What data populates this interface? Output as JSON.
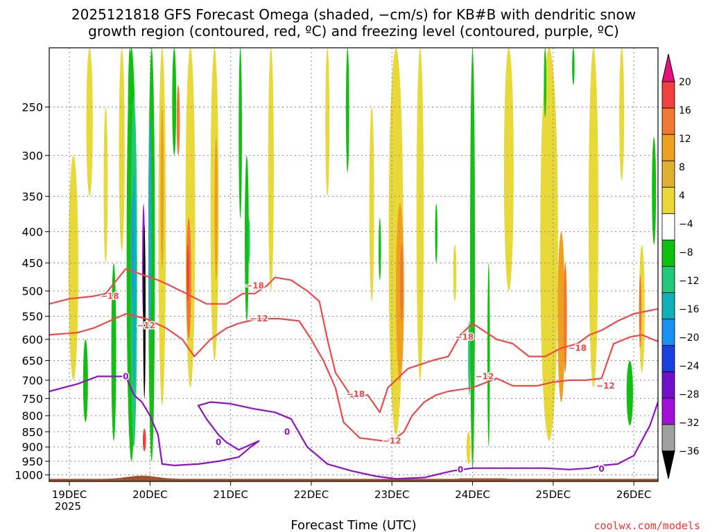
{
  "chart_data": {
    "type": "heatmap",
    "title_line1": "2025121818 GFS Forecast Omega (shaded, −cm/s) for KB#B with dendritic snow",
    "title_line2": "growth region (contoured, red, ºC) and freezing level (contoured, purple, ºC)",
    "xlabel": "Forecast Time (UTC)",
    "x_ticks": [
      "19DEC",
      "20DEC",
      "21DEC",
      "22DEC",
      "23DEC",
      "24DEC",
      "25DEC",
      "26DEC"
    ],
    "x_ticks_sub": "2025",
    "y_ticks": [
      250,
      300,
      350,
      400,
      450,
      500,
      550,
      600,
      650,
      700,
      750,
      800,
      850,
      900,
      950,
      1000
    ],
    "ylim": [
      1025,
      200
    ],
    "xlim_days": [
      -0.25,
      7.3
    ],
    "colorbar": {
      "labels": [
        "20",
        "16",
        "12",
        "8",
        "4",
        "−4",
        "−8",
        "−12",
        "−16",
        "−20",
        "−24",
        "−28",
        "−32",
        "−36"
      ],
      "colors": [
        "#e8107a",
        "#f04040",
        "#f07830",
        "#f0a020",
        "#e0b030",
        "#e8d838",
        "#ffffff",
        "#10c010",
        "#20c878",
        "#10b0b8",
        "#1a90f0",
        "#1a40e0",
        "#7010c8",
        "#a010d8",
        "#a0a0a0",
        "#000000"
      ]
    },
    "shading_regions": [
      {
        "name": "cell-19a",
        "value": 6,
        "t": 0.05,
        "p0": 300,
        "p1": 700,
        "w": 0.12
      },
      {
        "name": "cell-19b",
        "value": 5,
        "t": 0.25,
        "p0": 200,
        "p1": 350,
        "w": 0.08
      },
      {
        "name": "cell-19c",
        "value": -6,
        "t": 0.2,
        "p0": 600,
        "p1": 820,
        "w": 0.06
      },
      {
        "name": "cell-19d",
        "value": -6,
        "t": 0.55,
        "p0": 450,
        "p1": 880,
        "w": 0.06
      },
      {
        "name": "cell-19e",
        "value": 5,
        "t": 0.65,
        "p0": 200,
        "p1": 430,
        "w": 0.07
      },
      {
        "name": "cell-19f",
        "value": -6,
        "t": 0.75,
        "p0": 200,
        "p1": 380,
        "w": 0.05
      },
      {
        "name": "cell-19g",
        "value": 5,
        "t": 0.45,
        "p0": 250,
        "p1": 450,
        "w": 0.05
      },
      {
        "name": "cell-20a",
        "value": -6,
        "t": 0.77,
        "p0": 200,
        "p1": 950,
        "w": 0.12
      },
      {
        "name": "cell-20b",
        "value": -10,
        "t": 0.8,
        "p0": 240,
        "p1": 900,
        "w": 0.08
      },
      {
        "name": "cell-20c",
        "value": -14,
        "t": 0.8,
        "p0": 320,
        "p1": 720,
        "w": 0.05
      },
      {
        "name": "cell-20d",
        "value": -18,
        "t": 0.78,
        "p0": 350,
        "p1": 520,
        "w": 0.02
      },
      {
        "name": "cell-20e",
        "value": -30,
        "t": 0.92,
        "p0": 360,
        "p1": 560,
        "w": 0.035
      },
      {
        "name": "cell-20f",
        "value": -6,
        "t": 1.02,
        "p0": 200,
        "p1": 950,
        "w": 0.08
      },
      {
        "name": "cell-20g",
        "value": -14,
        "t": 1.0,
        "p0": 260,
        "p1": 600,
        "w": 0.04
      },
      {
        "name": "cell-20h",
        "value": -36,
        "t": 0.93,
        "p0": 390,
        "p1": 750,
        "w": 0.03
      },
      {
        "name": "cell-20i",
        "value": 18,
        "t": 0.93,
        "p0": 840,
        "p1": 915,
        "w": 0.04
      },
      {
        "name": "cell-20j",
        "value": 5,
        "t": 1.15,
        "p0": 200,
        "p1": 770,
        "w": 0.09
      },
      {
        "name": "cell-20k",
        "value": 10,
        "t": 1.15,
        "p0": 250,
        "p1": 460,
        "w": 0.04
      },
      {
        "name": "cell-20l",
        "value": -6,
        "t": 1.3,
        "p0": 200,
        "p1": 300,
        "w": 0.05
      },
      {
        "name": "cell-20m",
        "value": 6,
        "t": 1.5,
        "p0": 200,
        "p1": 720,
        "w": 0.12
      },
      {
        "name": "cell-20n",
        "value": 12,
        "t": 1.48,
        "p0": 380,
        "p1": 600,
        "w": 0.06
      },
      {
        "name": "cell-20o",
        "value": 16,
        "t": 1.47,
        "p0": 420,
        "p1": 520,
        "w": 0.03
      },
      {
        "name": "cell-20p",
        "value": 14,
        "t": 1.35,
        "p0": 230,
        "p1": 300,
        "w": 0.04
      },
      {
        "name": "cell-21a",
        "value": 6,
        "t": 1.8,
        "p0": 200,
        "p1": 650,
        "w": 0.1
      },
      {
        "name": "cell-21b",
        "value": 9,
        "t": 1.82,
        "p0": 280,
        "p1": 480,
        "w": 0.04
      },
      {
        "name": "cell-21c",
        "value": -6,
        "t": 2.2,
        "p0": 300,
        "p1": 560,
        "w": 0.05
      },
      {
        "name": "cell-21d",
        "value": -10,
        "t": 2.23,
        "p0": 380,
        "p1": 450,
        "w": 0.02
      },
      {
        "name": "cell-21e",
        "value": 5,
        "t": 2.5,
        "p0": 200,
        "p1": 500,
        "w": 0.07
      },
      {
        "name": "cell-21f",
        "value": -6,
        "t": 2.12,
        "p0": 200,
        "p1": 380,
        "w": 0.04
      },
      {
        "name": "cell-22a",
        "value": 5,
        "t": 3.2,
        "p0": 200,
        "p1": 350,
        "w": 0.05
      },
      {
        "name": "cell-22b",
        "value": -6,
        "t": 3.45,
        "p0": 200,
        "p1": 320,
        "w": 0.04
      },
      {
        "name": "cell-22c",
        "value": 5,
        "t": 3.75,
        "p0": 250,
        "p1": 520,
        "w": 0.06
      },
      {
        "name": "cell-22d",
        "value": -6,
        "t": 3.85,
        "p0": 380,
        "p1": 480,
        "w": 0.03
      },
      {
        "name": "cell-23a",
        "value": 6,
        "t": 4.05,
        "p0": 200,
        "p1": 860,
        "w": 0.18
      },
      {
        "name": "cell-23b",
        "value": 10,
        "t": 4.1,
        "p0": 360,
        "p1": 700,
        "w": 0.1
      },
      {
        "name": "cell-23c",
        "value": 13,
        "t": 4.12,
        "p0": 420,
        "p1": 560,
        "w": 0.04
      },
      {
        "name": "cell-23d",
        "value": 5,
        "t": 4.35,
        "p0": 200,
        "p1": 700,
        "w": 0.09
      },
      {
        "name": "cell-23e",
        "value": -6,
        "t": 4.55,
        "p0": 360,
        "p1": 450,
        "w": 0.03
      },
      {
        "name": "cell-23f",
        "value": 5,
        "t": 4.78,
        "p0": 420,
        "p1": 520,
        "w": 0.04
      },
      {
        "name": "cell-24a",
        "value": -6,
        "t": 5.0,
        "p0": 200,
        "p1": 980,
        "w": 0.06
      },
      {
        "name": "cell-24b",
        "value": -10,
        "t": 4.96,
        "p0": 560,
        "p1": 740,
        "w": 0.03
      },
      {
        "name": "cell-24c",
        "value": -6,
        "t": 5.2,
        "p0": 450,
        "p1": 900,
        "w": 0.03
      },
      {
        "name": "cell-24d",
        "value": 5,
        "t": 5.45,
        "p0": 200,
        "p1": 500,
        "w": 0.12
      },
      {
        "name": "cell-24e",
        "value": 5,
        "t": 4.95,
        "p0": 850,
        "p1": 960,
        "w": 0.05
      },
      {
        "name": "cell-25a",
        "value": 6,
        "t": 5.95,
        "p0": 200,
        "p1": 880,
        "w": 0.22
      },
      {
        "name": "cell-25b",
        "value": 10,
        "t": 6.1,
        "p0": 400,
        "p1": 760,
        "w": 0.09
      },
      {
        "name": "cell-25c",
        "value": 13,
        "t": 6.15,
        "p0": 450,
        "p1": 680,
        "w": 0.04
      },
      {
        "name": "cell-25d",
        "value": 5,
        "t": 6.5,
        "p0": 200,
        "p1": 720,
        "w": 0.12
      },
      {
        "name": "cell-25e",
        "value": -6,
        "t": 5.9,
        "p0": 200,
        "p1": 260,
        "w": 0.03
      },
      {
        "name": "cell-25f",
        "value": -6,
        "t": 6.25,
        "p0": 200,
        "p1": 230,
        "w": 0.03
      },
      {
        "name": "cell-26a",
        "value": -6,
        "t": 6.95,
        "p0": 650,
        "p1": 830,
        "w": 0.08
      },
      {
        "name": "cell-26b",
        "value": 6,
        "t": 7.1,
        "p0": 420,
        "p1": 680,
        "w": 0.07
      },
      {
        "name": "cell-26c",
        "value": 12,
        "t": 7.08,
        "p0": 470,
        "p1": 620,
        "w": 0.03
      },
      {
        "name": "cell-26d",
        "value": -6,
        "t": 7.25,
        "p0": 280,
        "p1": 420,
        "w": 0.05
      },
      {
        "name": "cell-26e",
        "value": 5,
        "t": 6.85,
        "p0": 200,
        "p1": 330,
        "w": 0.06
      }
    ],
    "contours": [
      {
        "name": "contour-dgz-minus18",
        "color": "#f04848",
        "label": "−18",
        "label_at": {
          "t": 0.5,
          "p": 510
        },
        "points": [
          [
            -0.25,
            525
          ],
          [
            0.0,
            515
          ],
          [
            0.3,
            510
          ],
          [
            0.45,
            505
          ],
          [
            0.7,
            460
          ],
          [
            0.9,
            470
          ],
          [
            1.1,
            480
          ],
          [
            1.25,
            490
          ],
          [
            1.45,
            505
          ],
          [
            1.7,
            525
          ],
          [
            1.95,
            525
          ],
          [
            2.15,
            505
          ],
          [
            2.3,
            505
          ],
          [
            2.45,
            490
          ],
          [
            2.55,
            475
          ],
          [
            2.75,
            480
          ],
          [
            2.95,
            500
          ],
          [
            3.1,
            520
          ],
          [
            3.2,
            600
          ],
          [
            3.3,
            680
          ],
          [
            3.5,
            745
          ],
          [
            3.7,
            740
          ],
          [
            3.85,
            790
          ],
          [
            3.95,
            720
          ],
          [
            4.2,
            670
          ],
          [
            4.5,
            650
          ],
          [
            4.7,
            640
          ],
          [
            4.85,
            590
          ],
          [
            5.0,
            565
          ],
          [
            5.3,
            600
          ],
          [
            5.5,
            610
          ],
          [
            5.7,
            640
          ],
          [
            5.9,
            640
          ],
          [
            6.1,
            620
          ],
          [
            6.3,
            610
          ],
          [
            6.45,
            590
          ],
          [
            6.6,
            580
          ],
          [
            6.8,
            560
          ],
          [
            7.0,
            545
          ],
          [
            7.3,
            535
          ]
        ]
      },
      {
        "name": "contour-dgz-minus12",
        "color": "#f04848",
        "label": "−12",
        "label_at": {
          "t": 0.95,
          "p": 570
        },
        "points": [
          [
            -0.25,
            590
          ],
          [
            0.1,
            585
          ],
          [
            0.3,
            575
          ],
          [
            0.5,
            560
          ],
          [
            0.7,
            545
          ],
          [
            0.95,
            555
          ],
          [
            1.2,
            575
          ],
          [
            1.4,
            600
          ],
          [
            1.55,
            640
          ],
          [
            1.75,
            600
          ],
          [
            1.95,
            575
          ],
          [
            2.1,
            565
          ],
          [
            2.35,
            555
          ],
          [
            2.6,
            555
          ],
          [
            2.85,
            560
          ],
          [
            3.0,
            600
          ],
          [
            3.15,
            650
          ],
          [
            3.3,
            720
          ],
          [
            3.4,
            820
          ],
          [
            3.6,
            870
          ],
          [
            3.9,
            880
          ],
          [
            4.05,
            870
          ],
          [
            4.15,
            850
          ],
          [
            4.25,
            800
          ],
          [
            4.4,
            760
          ],
          [
            4.55,
            740
          ],
          [
            4.7,
            730
          ],
          [
            4.85,
            725
          ],
          [
            5.0,
            720
          ],
          [
            5.3,
            695
          ],
          [
            5.5,
            715
          ],
          [
            5.8,
            715
          ],
          [
            6.0,
            705
          ],
          [
            6.2,
            700
          ],
          [
            6.4,
            700
          ],
          [
            6.6,
            695
          ],
          [
            6.75,
            610
          ],
          [
            6.95,
            595
          ],
          [
            7.1,
            590
          ],
          [
            7.3,
            605
          ]
        ]
      },
      {
        "name": "contour-freezing-0",
        "color": "#9010c8",
        "label": "0",
        "label_at": {
          "t": 0.7,
          "p": 690
        },
        "points": [
          [
            -0.25,
            730
          ],
          [
            0.1,
            710
          ],
          [
            0.35,
            690
          ],
          [
            0.55,
            690
          ],
          [
            0.7,
            690
          ],
          [
            0.8,
            740
          ],
          [
            0.9,
            760
          ],
          [
            1.0,
            800
          ],
          [
            1.1,
            860
          ],
          [
            1.15,
            960
          ],
          [
            1.3,
            965
          ],
          [
            1.6,
            960
          ],
          [
            1.85,
            950
          ],
          [
            2.1,
            935
          ],
          [
            2.25,
            900
          ],
          [
            2.35,
            880
          ],
          [
            2.1,
            910
          ],
          [
            1.95,
            885
          ],
          [
            1.85,
            860
          ],
          [
            1.7,
            810
          ],
          [
            1.6,
            770
          ],
          [
            1.75,
            760
          ],
          [
            2.0,
            765
          ],
          [
            2.3,
            780
          ],
          [
            2.55,
            790
          ],
          [
            2.75,
            810
          ],
          [
            2.95,
            900
          ],
          [
            3.2,
            960
          ],
          [
            3.5,
            985
          ],
          [
            3.8,
            1005
          ],
          [
            4.05,
            1015
          ],
          [
            4.4,
            1010
          ],
          [
            4.75,
            985
          ],
          [
            5.0,
            975
          ],
          [
            5.3,
            975
          ],
          [
            5.6,
            975
          ],
          [
            5.9,
            975
          ],
          [
            6.2,
            980
          ],
          [
            6.45,
            975
          ],
          [
            6.6,
            965
          ],
          [
            6.8,
            960
          ],
          [
            7.0,
            930
          ],
          [
            7.2,
            830
          ],
          [
            7.3,
            760
          ]
        ]
      }
    ],
    "contour_extra_labels": [
      {
        "name": "label-minus18-21dec",
        "text": "−18",
        "color": "#f04848",
        "t": 2.3,
        "p": 490
      },
      {
        "name": "label-minus12-21dec",
        "text": "−12",
        "color": "#f04848",
        "t": 2.35,
        "p": 555
      },
      {
        "name": "label-minus18-22dec",
        "text": "−18",
        "color": "#f04848",
        "t": 3.55,
        "p": 738
      },
      {
        "name": "label-minus12-23dec",
        "text": "−12",
        "color": "#f04848",
        "t": 4.0,
        "p": 880
      },
      {
        "name": "label-minus18-24dec",
        "text": "−18",
        "color": "#f04848",
        "t": 4.9,
        "p": 595
      },
      {
        "name": "label-minus12-24dec",
        "text": "−12",
        "color": "#f04848",
        "t": 5.15,
        "p": 690
      },
      {
        "name": "label-minus18-25dec",
        "text": "−18",
        "color": "#f04848",
        "t": 6.3,
        "p": 620
      },
      {
        "name": "label-minus12-26dec",
        "text": "−12",
        "color": "#f04848",
        "t": 6.65,
        "p": 715
      },
      {
        "name": "label-zero-21dec",
        "text": "0",
        "color": "#9010c8",
        "t": 1.85,
        "p": 885
      },
      {
        "name": "label-zero-22dec",
        "text": "0",
        "color": "#9010c8",
        "t": 2.7,
        "p": 850
      },
      {
        "name": "label-zero-24dec",
        "text": "0",
        "color": "#9010c8",
        "t": 4.85,
        "p": 980
      },
      {
        "name": "label-zero-26dec",
        "text": "0",
        "color": "#9010c8",
        "t": 6.6,
        "p": 978
      }
    ],
    "terrain_color": "#a0522d",
    "credit": "coolwx.com/models"
  }
}
